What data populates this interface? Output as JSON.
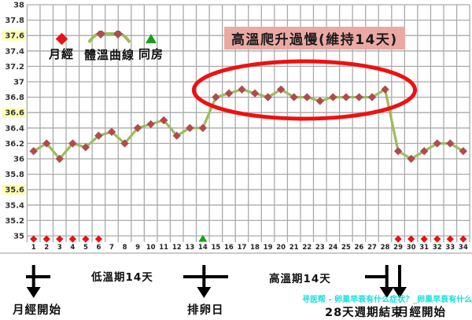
{
  "chart_data": {
    "type": "line",
    "title": "高溫爬升過慢(維持14天)",
    "x_days": [
      1,
      2,
      3,
      4,
      5,
      6,
      7,
      8,
      9,
      10,
      11,
      12,
      13,
      14,
      15,
      16,
      17,
      18,
      19,
      20,
      21,
      22,
      23,
      24,
      25,
      26,
      27,
      28,
      29,
      30,
      31,
      32,
      33,
      34
    ],
    "series": [
      {
        "name": "體溫曲線",
        "color": "#9dbb5d",
        "marker_color": "#b14a4d",
        "values": [
          36.1,
          36.2,
          36.0,
          36.2,
          36.15,
          36.3,
          36.35,
          36.2,
          36.4,
          36.45,
          36.5,
          36.3,
          36.4,
          36.4,
          36.8,
          36.85,
          36.9,
          36.85,
          36.8,
          36.9,
          36.8,
          36.8,
          36.75,
          36.8,
          36.8,
          36.8,
          36.8,
          36.9,
          36.1,
          36.0,
          36.1,
          36.2,
          36.2,
          36.1
        ]
      }
    ],
    "markers": {
      "menses": {
        "label": "月經",
        "color": "#e81313",
        "days": [
          1,
          2,
          3,
          4,
          5,
          6,
          29,
          30,
          31,
          32,
          33,
          34
        ]
      },
      "intercourse": {
        "label": "同房",
        "color": "#18a018",
        "days": [
          14
        ]
      }
    },
    "y_axis": {
      "min": 35,
      "max": 38,
      "step": 0.2,
      "tick_labels": [
        "38",
        "37.8",
        "37.6",
        "37.4",
        "37.2",
        "37",
        "36.8",
        "36.6",
        "36.4",
        "36.2",
        "36",
        "35.8",
        "35.6",
        "35.4",
        "35.2",
        "35"
      ],
      "highlighted_ticks": [
        37.6,
        36.6,
        35.6
      ]
    },
    "grid": true,
    "legend_position": "top-left",
    "ellipse_highlight_days": [
      15,
      28
    ]
  },
  "annotations": {
    "menses_start_left": "月經開始",
    "low_phase": "低溫期14天",
    "ovulation": "排卵日",
    "high_phase": "高溫期14天",
    "cycle_end": "28天週期結束",
    "menses_start_right": "月經開始"
  },
  "watermark": "寻医帮 - 卵巢早衰有什么症状？_卵巢早衰有什么症状",
  "colors": {
    "grid": "#aaaaaa",
    "highlight_tick_bg": "#ffffb3",
    "ellipse": "#ed1111",
    "annotation_box_bg": "#eba9a4",
    "arrow": "#000000",
    "watermark": "#00dcdc"
  }
}
